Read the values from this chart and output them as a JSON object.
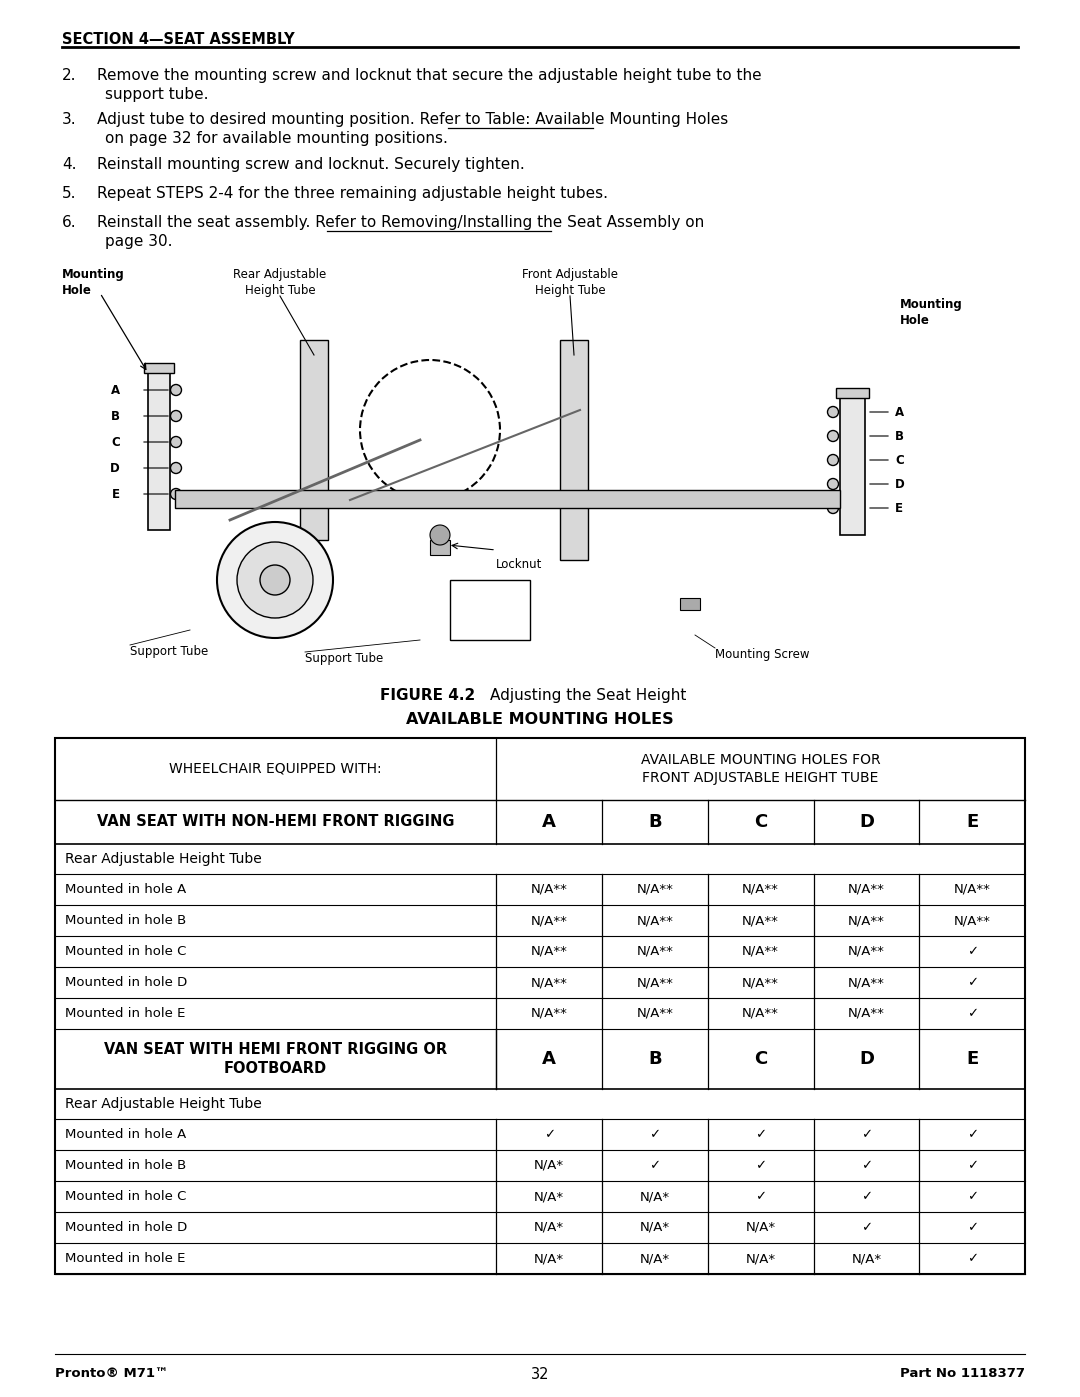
{
  "page_width": 10.8,
  "page_height": 13.97,
  "bg_color": "#ffffff",
  "section_title": "SECTION 4—SEAT ASSEMBLY",
  "figure_caption_bold": "FIGURE 4.2",
  "figure_caption_rest": "   Adjusting the Seat Height",
  "table_title": "AVAILABLE MOUNTING HOLES",
  "table_header_col1": "WHEELCHAIR EQUIPPED WITH:",
  "table_header_col2": "AVAILABLE MOUNTING HOLES FOR\nFRONT ADJUSTABLE HEIGHT TUBE",
  "table_col_letters": [
    "A",
    "B",
    "C",
    "D",
    "E"
  ],
  "row1_label": "VAN SEAT WITH NON-HEMI FRONT RIGGING",
  "row2_label": "Rear Adjustable Height Tube",
  "row3_label": "VAN SEAT WITH HEMI FRONT RIGGING OR\nFOOTBOARD",
  "row4_label": "Rear Adjustable Height Tube",
  "non_hemi_rows": [
    {
      "label": "Mounted in hole A",
      "values": [
        "N/A**",
        "N/A**",
        "N/A**",
        "N/A**",
        "N/A**"
      ]
    },
    {
      "label": "Mounted in hole B",
      "values": [
        "N/A**",
        "N/A**",
        "N/A**",
        "N/A**",
        "N/A**"
      ]
    },
    {
      "label": "Mounted in hole C",
      "values": [
        "N/A**",
        "N/A**",
        "N/A**",
        "N/A**",
        "✓"
      ]
    },
    {
      "label": "Mounted in hole D",
      "values": [
        "N/A**",
        "N/A**",
        "N/A**",
        "N/A**",
        "✓"
      ]
    },
    {
      "label": "Mounted in hole E",
      "values": [
        "N/A**",
        "N/A**",
        "N/A**",
        "N/A**",
        "✓"
      ]
    }
  ],
  "hemi_rows": [
    {
      "label": "Mounted in hole A",
      "values": [
        "✓",
        "✓",
        "✓",
        "✓",
        "✓"
      ]
    },
    {
      "label": "Mounted in hole B",
      "values": [
        "N/A*",
        "✓",
        "✓",
        "✓",
        "✓"
      ]
    },
    {
      "label": "Mounted in hole C",
      "values": [
        "N/A*",
        "N/A*",
        "✓",
        "✓",
        "✓"
      ]
    },
    {
      "label": "Mounted in hole D",
      "values": [
        "N/A*",
        "N/A*",
        "N/A*",
        "✓",
        "✓"
      ]
    },
    {
      "label": "Mounted in hole E",
      "values": [
        "N/A*",
        "N/A*",
        "N/A*",
        "N/A*",
        "✓"
      ]
    }
  ],
  "footer_left": "Pronto® M71™",
  "footer_center": "32",
  "footer_right": "Part No 1118377",
  "step2": "Remove the mounting screw and locknut that secure the adjustable height tube to the\n      support tube.",
  "step3_before": "Adjust tube to desired mounting position. Refer to Table: ",
  "step3_link": "Available Mounting Holes",
  "step3_after": "\n      on page 32 for available mounting positions.",
  "step4": "Reinstall mounting screw and locknut. Securely tighten.",
  "step5": "Repeat STEPS 2-4 for the three remaining adjustable height tubes.",
  "step6_before": "Reinstall the seat assembly. Refer to ",
  "step6_link": "Removing/Installing the Seat Assembly",
  "step6_after": " on\n      page 30.",
  "label_mounting_hole_left": "Mounting\nHole",
  "label_mounting_hole_right": "Mounting\nHole",
  "label_rear_adj": "Rear Adjustable\nHeight Tube",
  "label_front_adj": "Front Adjustable\nHeight Tube",
  "label_locknut": "Locknut",
  "label_support_tube_left": "Support Tube",
  "label_support_tube_right": "Support Tube",
  "label_mounting_screw": "Mounting Screw",
  "letters_abcde": [
    "A",
    "B",
    "C",
    "D",
    "E"
  ]
}
